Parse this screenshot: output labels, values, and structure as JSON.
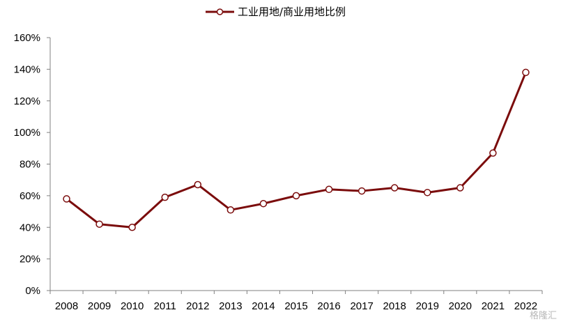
{
  "chart_data": {
    "type": "line",
    "title": "",
    "xlabel": "",
    "ylabel": "",
    "categories": [
      "2008",
      "2009",
      "2010",
      "2011",
      "2012",
      "2013",
      "2014",
      "2015",
      "2016",
      "2017",
      "2018",
      "2019",
      "2020",
      "2021",
      "2022"
    ],
    "series": [
      {
        "name": "工业用地/商业用地比例",
        "values": [
          58,
          42,
          40,
          59,
          67,
          51,
          55,
          60,
          64,
          63,
          65,
          62,
          65,
          87,
          138
        ],
        "color": "#7b0c0c",
        "marker": "hollow-circle"
      }
    ],
    "ylim": [
      0,
      160
    ],
    "yticks": [
      "0%",
      "20%",
      "40%",
      "60%",
      "80%",
      "100%",
      "120%",
      "140%",
      "160%"
    ],
    "y_unit": "%",
    "grid": false,
    "legend_position": "top-center"
  },
  "watermark": "格隆汇"
}
